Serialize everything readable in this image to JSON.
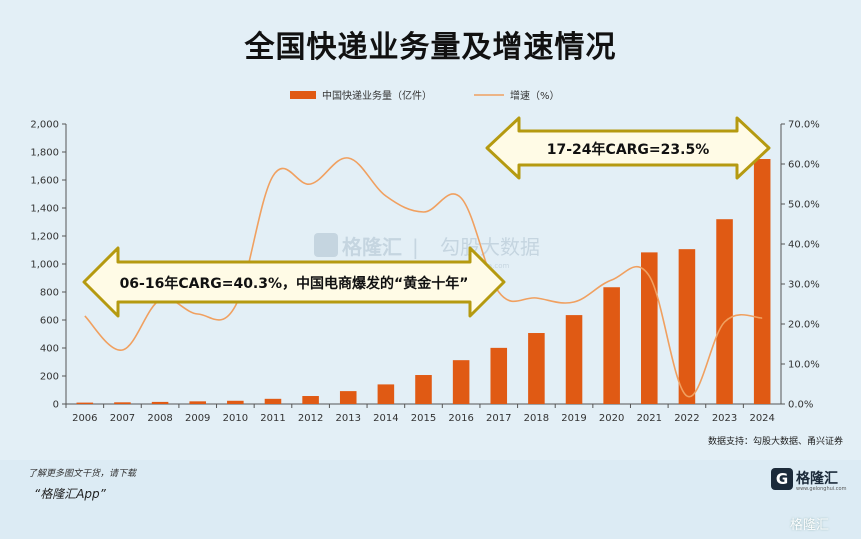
{
  "title": "全国快递业务量及增速情况",
  "legend": {
    "bar_label": "中国快递业务量（亿件）",
    "line_label": "增速（%）"
  },
  "source": "数据支持：勾股大数据、甬兴证券",
  "watermark": {
    "name": "格隆汇",
    "sep": "|",
    "partner": "勾股大数据",
    "url": "www.gogudata.com"
  },
  "annotations": {
    "left_arrow": "06-16年CARG=40.3%，中国电商爆发的“黄金十年”",
    "right_arrow": "17-24年CARG=23.5%"
  },
  "footer": {
    "line1": "了解更多图文干货，请下载",
    "line2": "“格隆汇App”"
  },
  "brand": {
    "logo_letter": "G",
    "logo_text": "格隆汇",
    "logo_url": "www.gelonghui.com",
    "corner": "格隆汇"
  },
  "colors": {
    "bar": "#e05a14",
    "line": "#f0a060",
    "arrow_fill": "#fffbe6",
    "arrow_stroke": "#b59a10"
  },
  "chart_data": {
    "type": "bar",
    "categories": [
      "2006",
      "2007",
      "2008",
      "2009",
      "2010",
      "2011",
      "2012",
      "2013",
      "2014",
      "2015",
      "2016",
      "2017",
      "2018",
      "2019",
      "2020",
      "2021",
      "2022",
      "2023",
      "2024"
    ],
    "series": [
      {
        "name": "中国快递业务量（亿件）",
        "type": "bar",
        "axis": "left",
        "values": [
          10,
          12,
          15,
          19,
          23,
          37,
          57,
          92,
          140,
          207,
          313,
          401,
          507,
          635,
          834,
          1083,
          1106,
          1320,
          1750
        ]
      },
      {
        "name": "增速（%）",
        "type": "line",
        "axis": "right",
        "values": [
          22.0,
          13.5,
          26.0,
          22.5,
          24.5,
          57.0,
          55.0,
          61.5,
          52.0,
          48.0,
          51.5,
          28.0,
          26.5,
          25.5,
          31.0,
          32.0,
          2.0,
          20.5,
          21.5
        ]
      }
    ],
    "left_axis": {
      "min": 0,
      "max": 2000,
      "step": 200,
      "ticks": [
        "0",
        "200",
        "400",
        "600",
        "800",
        "1,000",
        "1,200",
        "1,400",
        "1,600",
        "1,800",
        "2,000"
      ]
    },
    "right_axis": {
      "min": 0,
      "max": 70,
      "step": 10,
      "ticks": [
        "0.0%",
        "10.0%",
        "20.0%",
        "30.0%",
        "40.0%",
        "50.0%",
        "60.0%",
        "70.0%"
      ]
    },
    "grid": false,
    "legend_position": "top-center"
  }
}
